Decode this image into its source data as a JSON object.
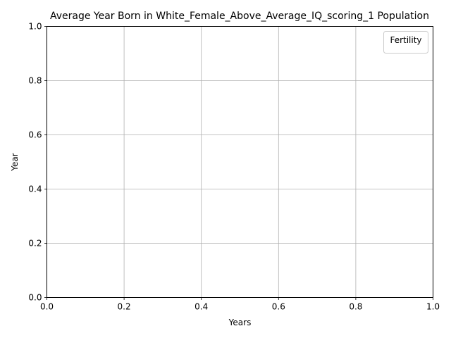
{
  "chart_data": {
    "type": "line",
    "title": "Average Year Born in White_Female_Above_Average_IQ_scoring_1 Population",
    "xlabel": "Years",
    "ylabel": "Year",
    "xlim": [
      0.0,
      1.0
    ],
    "ylim": [
      0.0,
      1.0
    ],
    "x_ticks": [
      "0.0",
      "0.2",
      "0.4",
      "0.6",
      "0.8",
      "1.0"
    ],
    "y_ticks": [
      "0.0",
      "0.2",
      "0.4",
      "0.6",
      "0.8",
      "1.0"
    ],
    "grid": true,
    "legend": {
      "title": "Fertility",
      "placement": "top-right",
      "entries": []
    },
    "series": []
  }
}
